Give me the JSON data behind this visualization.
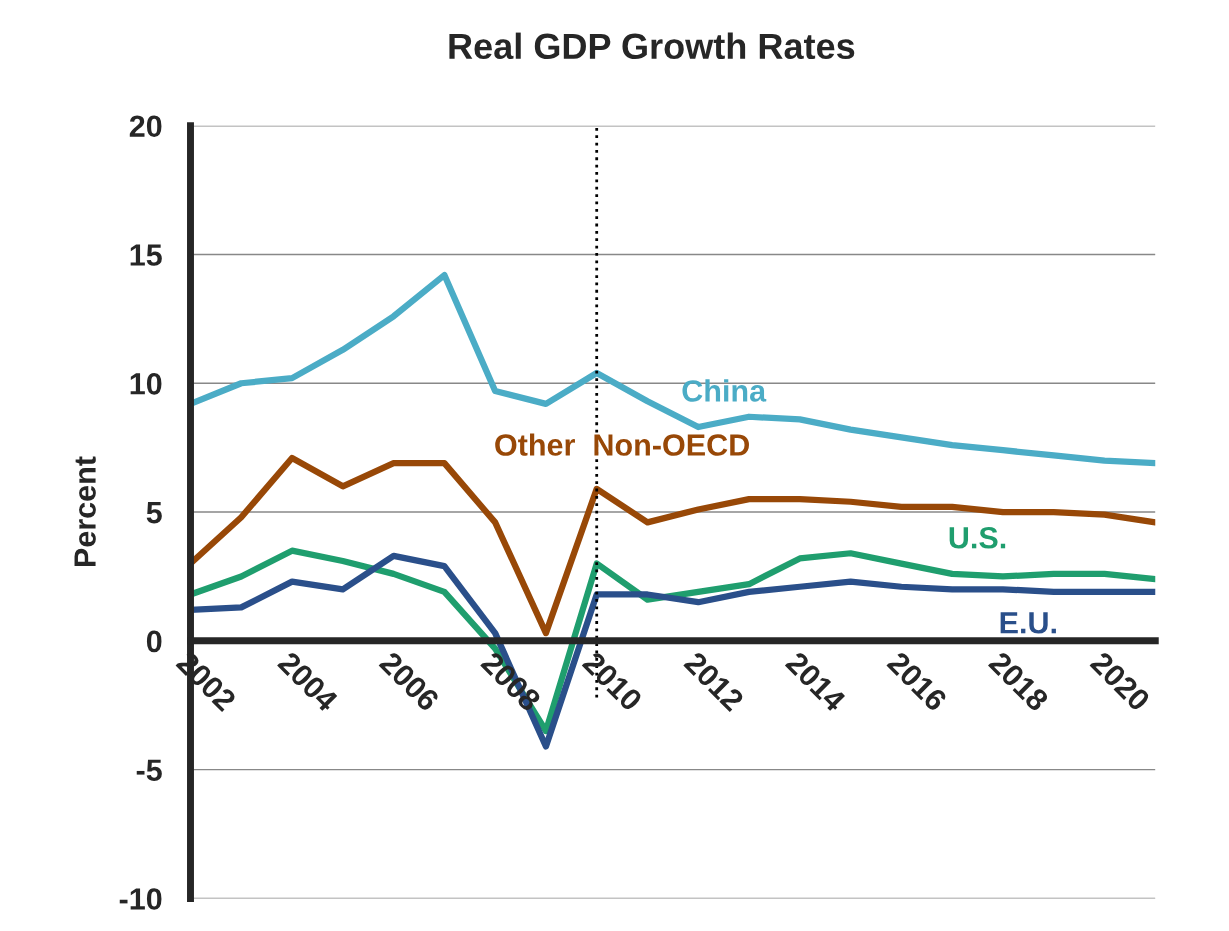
{
  "chart_data": {
    "type": "line",
    "title": "Real GDP Growth Rates",
    "ylabel": "Percent",
    "x": [
      2002,
      2003,
      2004,
      2005,
      2006,
      2007,
      2008,
      2009,
      2010,
      2011,
      2012,
      2013,
      2014,
      2015,
      2016,
      2017,
      2018,
      2019,
      2020,
      2021
    ],
    "series": [
      {
        "name": "China",
        "color": "#4bacc6",
        "values": [
          9.2,
          10.0,
          10.2,
          11.3,
          12.6,
          14.2,
          9.7,
          9.2,
          10.4,
          9.3,
          8.3,
          8.7,
          8.6,
          8.2,
          7.9,
          7.6,
          7.4,
          7.2,
          7.0,
          6.9
        ]
      },
      {
        "name": "Other  Non-OECD",
        "color": "#984807",
        "values": [
          3.0,
          4.8,
          7.1,
          6.0,
          6.9,
          6.9,
          4.6,
          0.3,
          5.9,
          4.6,
          5.1,
          5.5,
          5.5,
          5.4,
          5.2,
          5.2,
          5.0,
          5.0,
          4.9,
          4.6
        ]
      },
      {
        "name": "U.S.",
        "color": "#1f9e6e",
        "values": [
          1.8,
          2.5,
          3.5,
          3.1,
          2.6,
          1.9,
          -0.3,
          -3.5,
          3.0,
          1.6,
          1.9,
          2.2,
          3.2,
          3.4,
          3.0,
          2.6,
          2.5,
          2.6,
          2.6,
          2.4
        ]
      },
      {
        "name": "E.U.",
        "color": "#2a4f8a",
        "values": [
          1.2,
          1.3,
          2.3,
          2.0,
          3.3,
          2.9,
          0.3,
          -4.1,
          1.8,
          1.8,
          1.5,
          1.9,
          2.1,
          2.3,
          2.1,
          2.0,
          2.0,
          1.9,
          1.9,
          1.9
        ]
      }
    ],
    "xlim": [
      2002,
      2021
    ],
    "xticks": [
      2002,
      2004,
      2006,
      2008,
      2010,
      2012,
      2014,
      2016,
      2018,
      2020
    ],
    "ylim": [
      -10,
      20
    ],
    "yticks": [
      -10,
      -5,
      0,
      5,
      10,
      15,
      20
    ],
    "ref_lines": [
      {
        "axis": "x",
        "value": 2010,
        "label": null,
        "color": "#000000",
        "line_style": "dotted"
      }
    ],
    "grid": "y",
    "legend": false,
    "marker": "none",
    "line_style": "solid"
  }
}
